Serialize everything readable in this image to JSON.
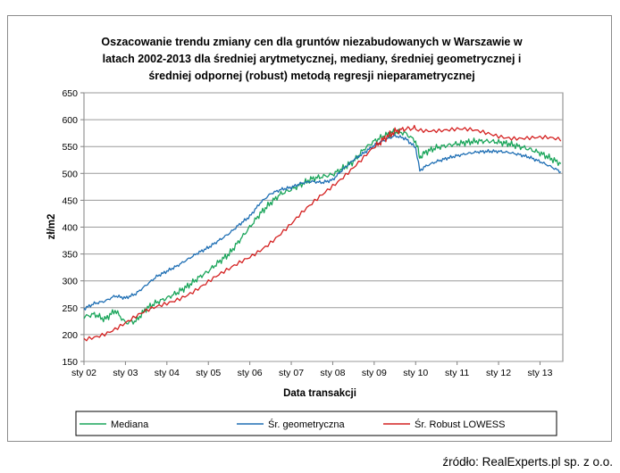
{
  "chart_data": {
    "type": "line",
    "title_lines": [
      "Oszacowanie trendu zmiany cen dla gruntów  niezabudowanych w Warszawie w",
      "latach 2002-2013  dla średniej arytmetycznej, mediany, średniej geometrycznej i",
      "średniej odpornej (robust) metodą regresji nieparametrycznej"
    ],
    "xlabel": "Data transakcji",
    "ylabel": "zł/m2",
    "x_categories": [
      "sty 02",
      "sty 03",
      "sty 04",
      "sty 05",
      "sty 06",
      "sty 07",
      "sty 08",
      "sty 09",
      "sty 10",
      "sty 11",
      "sty 12",
      "sty 13"
    ],
    "xlim": [
      2002.0,
      2013.55
    ],
    "ylim": [
      150,
      650
    ],
    "y_ticks": [
      "150",
      "200",
      "250",
      "300",
      "350",
      "400",
      "450",
      "500",
      "550",
      "600",
      "650"
    ],
    "grid": true,
    "legend_position": "bottom",
    "series": [
      {
        "name": "Mediana",
        "color": "#1aa55a",
        "x": [
          2002.0,
          2002.25,
          2002.5,
          2002.75,
          2003.0,
          2003.25,
          2003.5,
          2003.75,
          2004.0,
          2004.25,
          2004.5,
          2004.75,
          2005.0,
          2005.25,
          2005.5,
          2005.75,
          2006.0,
          2006.25,
          2006.5,
          2006.75,
          2007.0,
          2007.25,
          2007.5,
          2007.75,
          2008.0,
          2008.25,
          2008.5,
          2008.75,
          2009.0,
          2009.25,
          2009.5,
          2009.75,
          2010.0,
          2010.1,
          2010.25,
          2010.5,
          2010.75,
          2011.0,
          2011.25,
          2011.5,
          2011.75,
          2012.0,
          2012.25,
          2012.5,
          2012.75,
          2013.0,
          2013.25,
          2013.5
        ],
        "values": [
          233,
          238,
          228,
          245,
          222,
          225,
          248,
          260,
          268,
          278,
          290,
          305,
          318,
          335,
          350,
          375,
          400,
          425,
          445,
          462,
          470,
          480,
          490,
          494,
          498,
          510,
          522,
          545,
          560,
          570,
          578,
          575,
          560,
          530,
          540,
          548,
          552,
          555,
          558,
          560,
          560,
          558,
          555,
          550,
          545,
          538,
          528,
          518
        ]
      },
      {
        "name": "Śr. geometryczna",
        "color": "#1f6fb4",
        "x": [
          2002.0,
          2002.25,
          2002.5,
          2002.75,
          2003.0,
          2003.25,
          2003.5,
          2003.75,
          2004.0,
          2004.25,
          2004.5,
          2004.75,
          2005.0,
          2005.25,
          2005.5,
          2005.75,
          2006.0,
          2006.25,
          2006.5,
          2006.75,
          2007.0,
          2007.25,
          2007.5,
          2007.75,
          2008.0,
          2008.25,
          2008.5,
          2008.75,
          2009.0,
          2009.25,
          2009.5,
          2009.75,
          2010.0,
          2010.1,
          2010.25,
          2010.5,
          2010.75,
          2011.0,
          2011.25,
          2011.5,
          2011.75,
          2012.0,
          2012.25,
          2012.5,
          2012.75,
          2013.0,
          2013.25,
          2013.5
        ],
        "values": [
          248,
          258,
          262,
          272,
          268,
          276,
          292,
          308,
          318,
          328,
          340,
          352,
          362,
          375,
          388,
          405,
          420,
          445,
          462,
          470,
          474,
          482,
          485,
          483,
          488,
          508,
          525,
          538,
          552,
          562,
          570,
          565,
          548,
          505,
          514,
          522,
          528,
          533,
          537,
          540,
          541,
          541,
          539,
          535,
          530,
          522,
          513,
          503
        ]
      },
      {
        "name": "Śr. Robust LOWESS",
        "color": "#d42020",
        "x": [
          2002.0,
          2002.5,
          2003.0,
          2003.5,
          2004.0,
          2004.5,
          2005.0,
          2005.5,
          2006.0,
          2006.5,
          2007.0,
          2007.5,
          2008.0,
          2008.5,
          2009.0,
          2009.25,
          2009.5,
          2009.75,
          2010.0,
          2010.5,
          2011.0,
          2011.5,
          2012.0,
          2012.5,
          2013.0,
          2013.5
        ],
        "values": [
          190,
          205,
          222,
          240,
          258,
          278,
          298,
          318,
          345,
          375,
          405,
          440,
          478,
          515,
          548,
          565,
          578,
          583,
          584,
          583,
          580,
          576,
          572,
          568,
          564,
          560
        ]
      }
    ]
  },
  "source_note": "źródło: RealExperts.pl sp. z o.o."
}
